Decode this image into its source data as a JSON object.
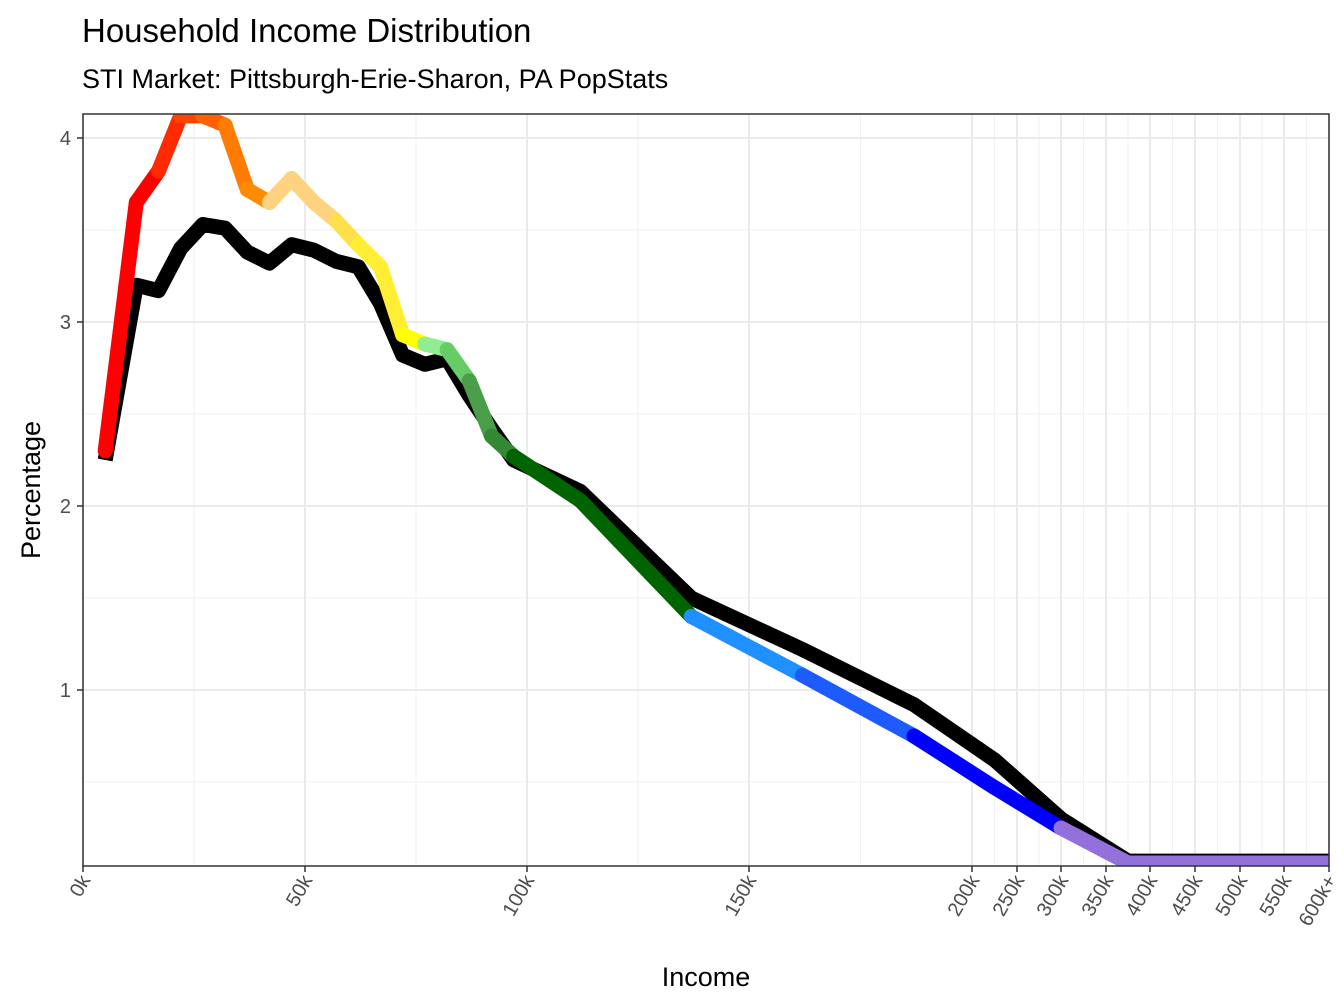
{
  "title": "Household Income Distribution",
  "subtitle": "STI Market: Pittsburgh-Erie-Sharon, PA PopStats",
  "chart_data": {
    "type": "line",
    "xlabel": "Income",
    "ylabel": "Percentage",
    "x_tick_labels": [
      "0k",
      "50k",
      "100k",
      "150k",
      "200k",
      "250k",
      "300k",
      "350k",
      "400k",
      "450k",
      "500k",
      "550k",
      "600k+"
    ],
    "y_tick_labels": [
      "1",
      "2",
      "3",
      "4"
    ],
    "ylim": [
      0.05,
      4.14
    ],
    "grid": true,
    "legend": "none",
    "x_scale": "piecewise: linear 0k-200k, compressed 200k-600k+",
    "series": [
      {
        "color": "#000000",
        "color_mode": "single",
        "points": [
          [
            5,
            2.25
          ],
          [
            12,
            3.2
          ],
          [
            17,
            3.17
          ],
          [
            22,
            3.4
          ],
          [
            27,
            3.53
          ],
          [
            32,
            3.51
          ],
          [
            37,
            3.38
          ],
          [
            42,
            3.32
          ],
          [
            47,
            3.42
          ],
          [
            52,
            3.39
          ],
          [
            57,
            3.33
          ],
          [
            62,
            3.3
          ],
          [
            67,
            3.1
          ],
          [
            72,
            2.82
          ],
          [
            77,
            2.77
          ],
          [
            82,
            2.8
          ],
          [
            87,
            2.6
          ],
          [
            92,
            2.42
          ],
          [
            97,
            2.25
          ],
          [
            112,
            2.08
          ],
          [
            137,
            1.5
          ],
          [
            162,
            1.22
          ],
          [
            187,
            0.92
          ],
          [
            225,
            0.62
          ],
          [
            300,
            0.3
          ],
          [
            375,
            0.07
          ],
          [
            600,
            0.07
          ]
        ]
      },
      {
        "color_mode": "gradient",
        "points": [
          [
            5,
            2.3,
            "#ff0000"
          ],
          [
            12,
            3.65,
            "#ff0000"
          ],
          [
            17,
            3.82,
            "#ff2a00"
          ],
          [
            22,
            4.12,
            "#ff4400"
          ],
          [
            27,
            4.12,
            "#ff6000"
          ],
          [
            32,
            4.07,
            "#ff7c00"
          ],
          [
            37,
            3.72,
            "#ff8c00"
          ],
          [
            42,
            3.65,
            "#ffd27f"
          ],
          [
            47,
            3.78,
            "#ffd27f"
          ],
          [
            52,
            3.65,
            "#ffd27f"
          ],
          [
            57,
            3.55,
            "#ffe04a"
          ],
          [
            62,
            3.42,
            "#ffee33"
          ],
          [
            67,
            3.3,
            "#ffee33"
          ],
          [
            72,
            2.93,
            "#ffff00"
          ],
          [
            77,
            2.88,
            "#90ee90"
          ],
          [
            82,
            2.85,
            "#66cc66"
          ],
          [
            87,
            2.68,
            "#4a9e4a"
          ],
          [
            92,
            2.38,
            "#338833"
          ],
          [
            97,
            2.27,
            "#006400"
          ],
          [
            112,
            2.03,
            "#006400"
          ],
          [
            137,
            1.4,
            "#1e90ff"
          ],
          [
            162,
            1.08,
            "#1e5bff"
          ],
          [
            187,
            0.75,
            "#0000ff"
          ],
          [
            225,
            0.47,
            "#0000ff"
          ],
          [
            300,
            0.25,
            "#9370db"
          ],
          [
            375,
            0.06,
            "#9370db"
          ],
          [
            600,
            0.06,
            "#663399"
          ]
        ]
      }
    ]
  }
}
